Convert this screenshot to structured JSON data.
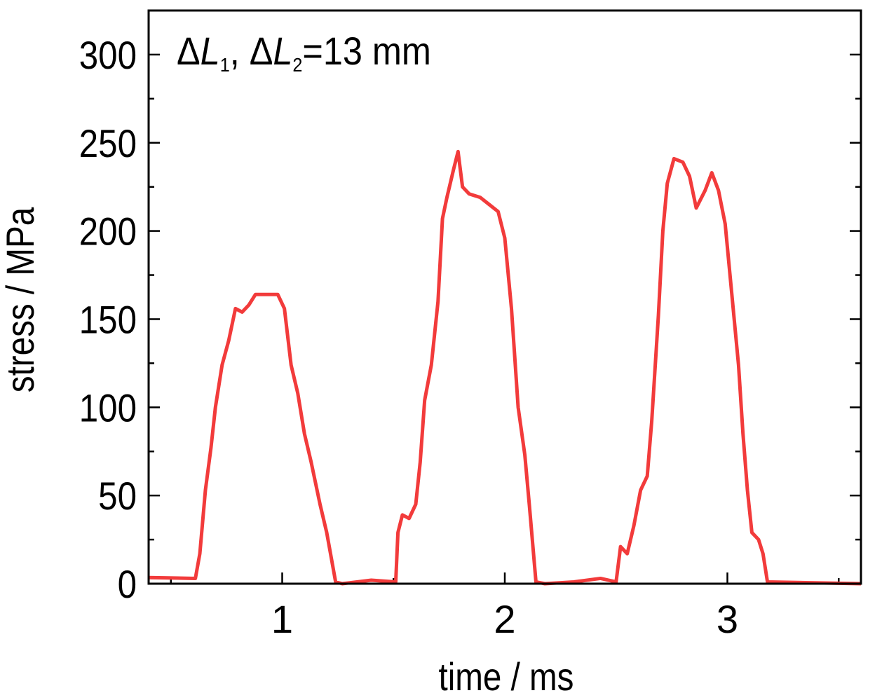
{
  "chart_data": {
    "type": "line",
    "xlabel": "time / ms",
    "ylabel": "stress / MPa",
    "annotation": [
      "Δ",
      "L",
      "1",
      ", Δ",
      "L",
      "2",
      "=13 mm"
    ],
    "annotation_style": [
      "normal",
      "italic",
      "sub",
      "normal",
      "italic",
      "sub",
      "normal"
    ],
    "xlim": [
      0.4,
      3.6
    ],
    "ylim": [
      0,
      325
    ],
    "xticks": [
      1,
      2,
      3
    ],
    "yticks": [
      0,
      50,
      100,
      150,
      200,
      250,
      300
    ],
    "xminorticks": [
      0.5,
      1.5,
      2.5,
      3.5
    ],
    "yminorticks": [
      25,
      75,
      125,
      175,
      225,
      275
    ],
    "series": [
      {
        "color": "#f23b3b",
        "x": [
          0.4,
          0.61,
          0.63,
          0.655,
          0.68,
          0.7,
          0.73,
          0.76,
          0.79,
          0.82,
          0.85,
          0.88,
          0.93,
          0.98,
          1.01,
          1.04,
          1.07,
          1.1,
          1.13,
          1.17,
          1.2,
          1.24,
          1.27,
          1.4,
          1.51,
          1.52,
          1.54,
          1.57,
          1.6,
          1.62,
          1.64,
          1.67,
          1.7,
          1.72,
          1.74,
          1.77,
          1.79,
          1.81,
          1.84,
          1.89,
          1.93,
          1.97,
          2.0,
          2.03,
          2.06,
          2.09,
          2.11,
          2.14,
          2.18,
          2.31,
          2.43,
          2.5,
          2.52,
          2.55,
          2.58,
          2.61,
          2.64,
          2.66,
          2.69,
          2.71,
          2.73,
          2.76,
          2.8,
          2.83,
          2.86,
          2.9,
          2.93,
          2.96,
          2.99,
          3.02,
          3.05,
          3.07,
          3.09,
          3.11,
          3.14,
          3.16,
          3.18,
          3.6
        ],
        "values": [
          3.5,
          3,
          17,
          53,
          77,
          100,
          124,
          138,
          156,
          154,
          158,
          164,
          164,
          164,
          156,
          124,
          108,
          85,
          69,
          45,
          29,
          1,
          0,
          2,
          1,
          29,
          39,
          37,
          45,
          69,
          104,
          124,
          160,
          207,
          219,
          235,
          245,
          225,
          221,
          219,
          215,
          211,
          196,
          156,
          100,
          73,
          45,
          1,
          0,
          1,
          3,
          1,
          21,
          17,
          33,
          53,
          61,
          92,
          152,
          200,
          227,
          241,
          239,
          231,
          213,
          223,
          233,
          223,
          204,
          164,
          124,
          85,
          53,
          29,
          25,
          17,
          1,
          0
        ]
      }
    ]
  }
}
